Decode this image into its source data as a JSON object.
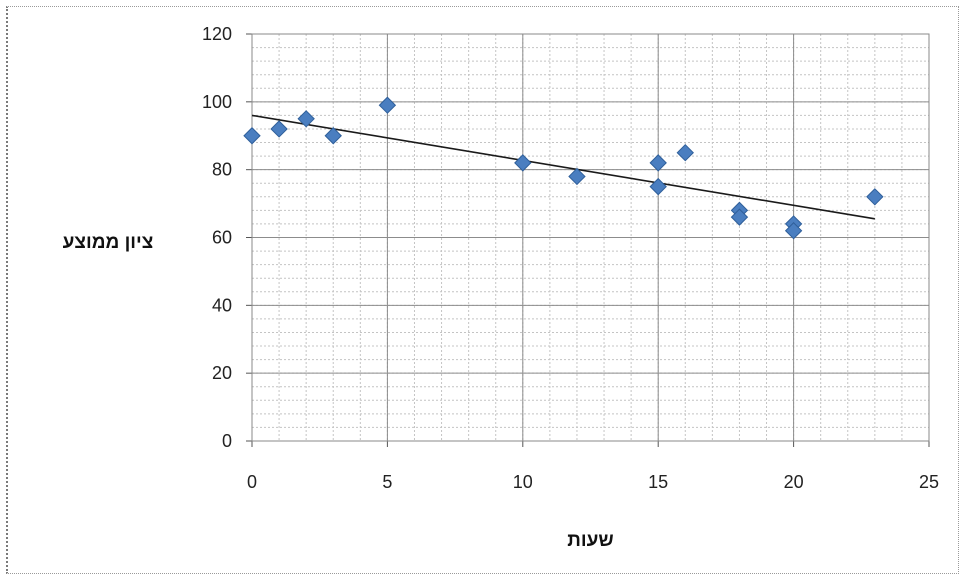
{
  "chart_data": {
    "type": "scatter",
    "title": "",
    "xlabel": "שעות",
    "ylabel": "ציון ממוצע",
    "xlim": [
      0,
      25
    ],
    "ylim": [
      0,
      120
    ],
    "xticks": [
      0,
      5,
      10,
      15,
      20,
      25
    ],
    "yticks": [
      0,
      20,
      40,
      60,
      80,
      100,
      120
    ],
    "grid": true,
    "legend": "none",
    "colors": {
      "marker": "#4a7ec0",
      "marker_edge": "#2f5f9a",
      "trendline": "#1a1a1a",
      "major_grid": "#8c8c8c",
      "minor_grid": "#c4c4c4"
    },
    "series": [
      {
        "marker": "diamond",
        "points": [
          {
            "x": 0,
            "y": 90
          },
          {
            "x": 1,
            "y": 92
          },
          {
            "x": 2,
            "y": 95
          },
          {
            "x": 3,
            "y": 90
          },
          {
            "x": 5,
            "y": 99
          },
          {
            "x": 10,
            "y": 82
          },
          {
            "x": 12,
            "y": 78
          },
          {
            "x": 15,
            "y": 82
          },
          {
            "x": 15,
            "y": 75
          },
          {
            "x": 16,
            "y": 85
          },
          {
            "x": 18,
            "y": 68
          },
          {
            "x": 18,
            "y": 66
          },
          {
            "x": 20,
            "y": 64
          },
          {
            "x": 20,
            "y": 62
          },
          {
            "x": 23,
            "y": 72
          }
        ]
      }
    ],
    "trendline": {
      "type": "linear",
      "x": [
        0,
        23
      ],
      "y": [
        96,
        65.5
      ]
    }
  }
}
